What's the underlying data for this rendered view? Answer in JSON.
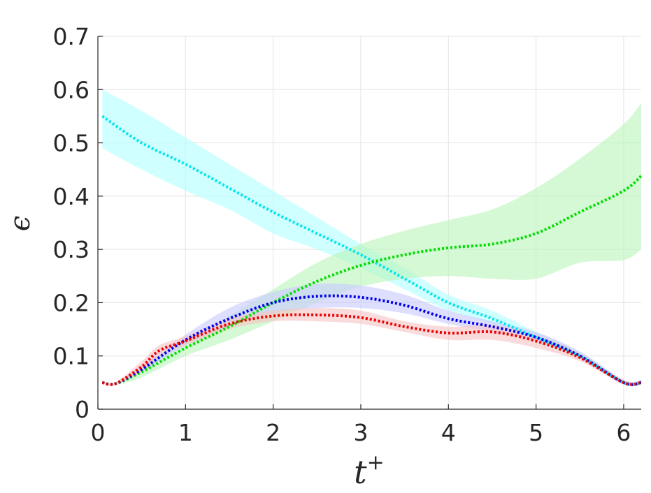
{
  "chart_data": {
    "type": "line",
    "title": "",
    "xlabel": "t",
    "xlabel_superscript": "+",
    "ylabel": "ϵ",
    "xlim": [
      0,
      6.2
    ],
    "ylim": [
      0,
      0.7
    ],
    "xticks": [
      0,
      1,
      2,
      3,
      4,
      5,
      6
    ],
    "yticks": [
      0,
      0.1,
      0.2,
      0.3,
      0.4,
      0.5,
      0.6,
      0.7
    ],
    "grid": true,
    "line_style": "dotted",
    "shaded_bands": true,
    "series": [
      {
        "color": "#00e5ee",
        "band_color": "#b0ffff",
        "x": [
          0.05,
          0.5,
          1,
          1.5,
          2,
          2.5,
          3,
          3.5,
          4,
          4.5,
          5,
          5.5,
          6,
          6.2
        ],
        "values": [
          0.55,
          0.5,
          0.46,
          0.415,
          0.37,
          0.33,
          0.29,
          0.245,
          0.2,
          0.17,
          0.135,
          0.1,
          0.05,
          0.05
        ],
        "lower": [
          0.49,
          0.45,
          0.41,
          0.375,
          0.33,
          0.3,
          0.265,
          0.225,
          0.185,
          0.16,
          0.125,
          0.095,
          0.047,
          0.045
        ],
        "upper": [
          0.6,
          0.56,
          0.51,
          0.46,
          0.41,
          0.36,
          0.31,
          0.265,
          0.215,
          0.185,
          0.145,
          0.108,
          0.055,
          0.055
        ]
      },
      {
        "color": "#00dd00",
        "band_color": "#b8f5b8",
        "x": [
          0.05,
          0.2,
          0.5,
          1,
          1.5,
          2,
          2.5,
          3,
          3.5,
          4,
          4.5,
          5,
          5.5,
          6,
          6.2
        ],
        "values": [
          0.05,
          0.048,
          0.07,
          0.115,
          0.155,
          0.2,
          0.24,
          0.27,
          0.29,
          0.303,
          0.31,
          0.33,
          0.37,
          0.41,
          0.438
        ],
        "lower": [
          0.048,
          0.046,
          0.06,
          0.1,
          0.13,
          0.165,
          0.2,
          0.23,
          0.245,
          0.25,
          0.245,
          0.245,
          0.275,
          0.28,
          0.3
        ],
        "upper": [
          0.052,
          0.05,
          0.08,
          0.13,
          0.175,
          0.225,
          0.275,
          0.31,
          0.335,
          0.355,
          0.375,
          0.415,
          0.47,
          0.535,
          0.575
        ]
      },
      {
        "color": "#0000ee",
        "band_color": "#c8c8ff",
        "x": [
          0.05,
          0.2,
          0.5,
          1,
          1.5,
          2,
          2.5,
          3,
          3.5,
          4,
          4.5,
          5,
          5.5,
          6,
          6.2
        ],
        "values": [
          0.05,
          0.048,
          0.075,
          0.13,
          0.17,
          0.2,
          0.212,
          0.21,
          0.195,
          0.17,
          0.155,
          0.135,
          0.1,
          0.05,
          0.05
        ],
        "lower": [
          0.048,
          0.046,
          0.07,
          0.12,
          0.155,
          0.18,
          0.19,
          0.19,
          0.18,
          0.16,
          0.145,
          0.128,
          0.095,
          0.047,
          0.046
        ],
        "upper": [
          0.052,
          0.05,
          0.082,
          0.14,
          0.19,
          0.22,
          0.235,
          0.232,
          0.215,
          0.185,
          0.165,
          0.145,
          0.108,
          0.055,
          0.054
        ]
      },
      {
        "color": "#ee0000",
        "band_color": "#f7c3c3",
        "x": [
          0.05,
          0.2,
          0.5,
          0.7,
          1,
          1.5,
          2,
          2.5,
          3,
          3.5,
          4,
          4.5,
          5,
          5.5,
          6,
          6.2
        ],
        "values": [
          0.05,
          0.048,
          0.08,
          0.11,
          0.128,
          0.16,
          0.175,
          0.177,
          0.172,
          0.155,
          0.143,
          0.145,
          0.128,
          0.097,
          0.05,
          0.05
        ],
        "lower": [
          0.048,
          0.046,
          0.07,
          0.1,
          0.12,
          0.15,
          0.165,
          0.165,
          0.16,
          0.145,
          0.13,
          0.13,
          0.115,
          0.09,
          0.046,
          0.046
        ],
        "upper": [
          0.052,
          0.05,
          0.09,
          0.12,
          0.137,
          0.17,
          0.185,
          0.19,
          0.185,
          0.165,
          0.155,
          0.158,
          0.14,
          0.105,
          0.055,
          0.054
        ]
      }
    ]
  }
}
